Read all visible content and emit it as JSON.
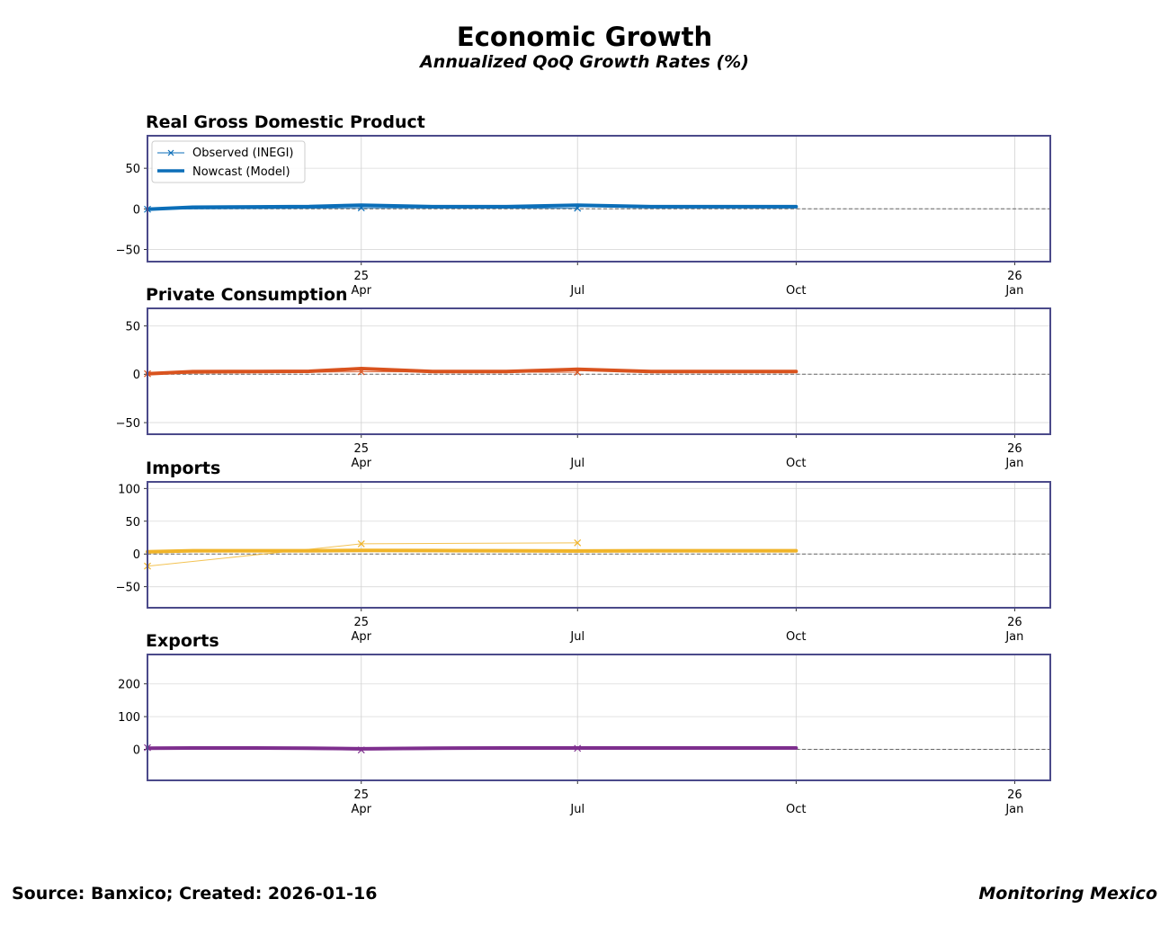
{
  "title": "Economic Growth",
  "subtitle": "Annualized QoQ Growth Rates (%)",
  "footer": {
    "source": "Source: Banxico; Created: 2026-01-16",
    "brand": "Monitoring Mexico"
  },
  "legend": {
    "observed": "Observed (INEGI)",
    "nowcast": "Nowcast (Model)"
  },
  "chart_data": [
    {
      "type": "line",
      "title": "Real Gross Domestic Product",
      "color": "#0b6eb8",
      "x_range": [
        "2025-01-01",
        "2026-01-16"
      ],
      "ylim": [
        -65,
        90
      ],
      "yticks": [
        -50,
        0,
        50
      ],
      "xticks": [
        {
          "date": "2025-04-01",
          "top": "25",
          "bottom": "Apr"
        },
        {
          "date": "2025-07-01",
          "top": "",
          "bottom": "Jul"
        },
        {
          "date": "2025-10-01",
          "top": "",
          "bottom": "Oct"
        },
        {
          "date": "2026-01-01",
          "top": "26",
          "bottom": "Jan"
        }
      ],
      "series": [
        {
          "name": "Observed (INEGI)",
          "style": "thin-x",
          "x": [
            "2025-01-01",
            "2025-04-01",
            "2025-07-01"
          ],
          "values": [
            -0.5,
            1.2,
            0.8
          ]
        },
        {
          "name": "Nowcast (Model)",
          "style": "thick",
          "x": [
            "2025-01-01",
            "2025-01-20",
            "2025-02-15",
            "2025-03-10",
            "2025-04-01",
            "2025-05-01",
            "2025-06-01",
            "2025-07-01",
            "2025-08-01",
            "2025-09-01",
            "2025-10-01"
          ],
          "values": [
            -0.5,
            2.0,
            2.4,
            2.8,
            4.5,
            2.6,
            2.6,
            4.5,
            2.7,
            2.6,
            2.6
          ]
        }
      ],
      "show_legend": true
    },
    {
      "type": "line",
      "title": "Private Consumption",
      "color": "#d9531e",
      "x_range": [
        "2025-01-01",
        "2026-01-16"
      ],
      "ylim": [
        -62,
        68
      ],
      "yticks": [
        -50,
        0,
        50
      ],
      "xticks": [
        {
          "date": "2025-04-01",
          "top": "25",
          "bottom": "Apr"
        },
        {
          "date": "2025-07-01",
          "top": "",
          "bottom": "Jul"
        },
        {
          "date": "2025-10-01",
          "top": "",
          "bottom": "Oct"
        },
        {
          "date": "2026-01-01",
          "top": "26",
          "bottom": "Jan"
        }
      ],
      "series": [
        {
          "name": "Observed (INEGI)",
          "style": "thin-x",
          "x": [
            "2025-01-01",
            "2025-04-01",
            "2025-07-01"
          ],
          "values": [
            0.5,
            2.5,
            2.0
          ]
        },
        {
          "name": "Nowcast (Model)",
          "style": "thick",
          "x": [
            "2025-01-01",
            "2025-01-20",
            "2025-02-15",
            "2025-03-10",
            "2025-04-01",
            "2025-05-01",
            "2025-06-01",
            "2025-07-01",
            "2025-08-01",
            "2025-09-01",
            "2025-10-01"
          ],
          "values": [
            0.5,
            2.6,
            2.8,
            3.0,
            5.8,
            2.8,
            2.8,
            5.0,
            2.8,
            2.8,
            2.8
          ]
        }
      ],
      "show_legend": false
    },
    {
      "type": "line",
      "title": "Imports",
      "color": "#f0b429",
      "x_range": [
        "2025-01-01",
        "2026-01-16"
      ],
      "ylim": [
        -82,
        110
      ],
      "yticks": [
        -50,
        0,
        50,
        100
      ],
      "xticks": [
        {
          "date": "2025-04-01",
          "top": "25",
          "bottom": "Apr"
        },
        {
          "date": "2025-07-01",
          "top": "",
          "bottom": "Jul"
        },
        {
          "date": "2025-10-01",
          "top": "",
          "bottom": "Oct"
        },
        {
          "date": "2026-01-01",
          "top": "26",
          "bottom": "Jan"
        }
      ],
      "series": [
        {
          "name": "Observed (INEGI)",
          "style": "thin-x",
          "x": [
            "2025-01-01",
            "2025-04-01",
            "2025-07-01"
          ],
          "values": [
            -18.5,
            15.5,
            17.0
          ]
        },
        {
          "name": "Nowcast (Model)",
          "style": "thick",
          "x": [
            "2025-01-01",
            "2025-01-20",
            "2025-02-15",
            "2025-03-10",
            "2025-04-01",
            "2025-05-01",
            "2025-06-01",
            "2025-07-01",
            "2025-08-01",
            "2025-09-01",
            "2025-10-01"
          ],
          "values": [
            3.5,
            5.0,
            5.0,
            5.0,
            5.5,
            5.2,
            5.0,
            4.5,
            5.0,
            5.0,
            5.0
          ]
        }
      ],
      "show_legend": false
    },
    {
      "type": "line",
      "title": "Exports",
      "color": "#7e2f8e",
      "x_range": [
        "2025-01-01",
        "2026-01-16"
      ],
      "ylim": [
        -95,
        290
      ],
      "yticks": [
        0,
        100,
        200
      ],
      "xticks": [
        {
          "date": "2025-04-01",
          "top": "25",
          "bottom": "Apr"
        },
        {
          "date": "2025-07-01",
          "top": "",
          "bottom": "Jul"
        },
        {
          "date": "2025-10-01",
          "top": "",
          "bottom": "Oct"
        },
        {
          "date": "2026-01-01",
          "top": "26",
          "bottom": "Jan"
        }
      ],
      "series": [
        {
          "name": "Observed (INEGI)",
          "style": "thin-x",
          "x": [
            "2025-01-01",
            "2025-04-01",
            "2025-07-01"
          ],
          "values": [
            5.0,
            -2.0,
            3.0
          ]
        },
        {
          "name": "Nowcast (Model)",
          "style": "thick",
          "x": [
            "2025-01-01",
            "2025-01-20",
            "2025-02-15",
            "2025-03-10",
            "2025-04-01",
            "2025-05-01",
            "2025-06-01",
            "2025-07-01",
            "2025-08-01",
            "2025-09-01",
            "2025-10-01"
          ],
          "values": [
            3.5,
            4.0,
            4.0,
            3.5,
            1.5,
            3.5,
            4.0,
            4.0,
            4.0,
            4.0,
            4.0
          ]
        }
      ],
      "show_legend": false
    }
  ]
}
